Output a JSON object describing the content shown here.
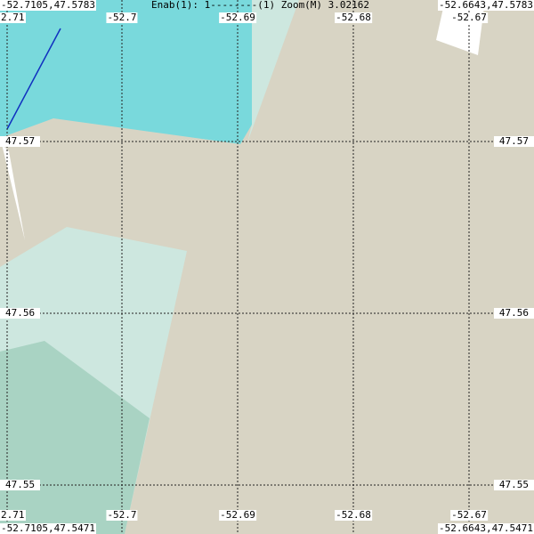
{
  "header": {
    "top_left": "-52.7105,47.5783",
    "status": "Enab(1): 1--------(1) Zoom(M) 3.02162",
    "top_right": "-52.6643,47.5783"
  },
  "footer": {
    "bottom_left": "-52.7105,47.5471",
    "bottom_right": "-52.6643,47.5471"
  },
  "grid": {
    "top_labels": [
      "2.71",
      "-52.7",
      "-52.69",
      "-52.68",
      "-52.67"
    ],
    "bottom_labels": [
      "2.71",
      "-52.7",
      "-52.69",
      "-52.68",
      "-52.67"
    ],
    "left_labels": [
      "47.57",
      "47.56",
      "47.55"
    ],
    "right_labels": [
      "47.57",
      "47.56",
      "47.55"
    ]
  }
}
